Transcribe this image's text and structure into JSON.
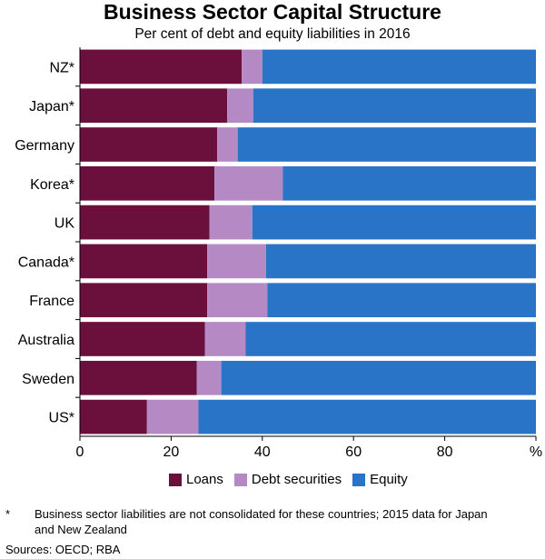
{
  "chart_data": {
    "type": "bar",
    "orientation": "horizontal",
    "stacked": true,
    "title": "Business Sector Capital Structure",
    "subtitle": "Per cent of debt and equity liabilities in 2016",
    "categories": [
      "NZ*",
      "Japan*",
      "Germany",
      "Korea*",
      "UK",
      "Canada*",
      "France",
      "Australia",
      "Sweden",
      "US*"
    ],
    "series": [
      {
        "name": "Loans",
        "color": "#6b0f3d",
        "values": [
          35.5,
          32.3,
          30.1,
          29.5,
          28.4,
          27.9,
          27.9,
          27.4,
          25.6,
          14.7
        ]
      },
      {
        "name": "Debt securities",
        "color": "#b589c4",
        "values": [
          4.5,
          5.7,
          4.5,
          15.0,
          9.4,
          12.9,
          13.2,
          8.9,
          5.4,
          11.3
        ]
      },
      {
        "name": "Equity",
        "color": "#2a74c8",
        "values": [
          60.0,
          62.0,
          65.4,
          55.5,
          62.2,
          59.2,
          58.9,
          63.7,
          69.0,
          74.0
        ]
      }
    ],
    "xlim": [
      0,
      100
    ],
    "xticks": [
      0,
      20,
      40,
      60,
      80
    ],
    "unit_label": "%",
    "legend_position": "bottom",
    "grid": false
  },
  "footnote": {
    "mark": "*",
    "text": "Business sector liabilities are not consolidated for these countries; 2015 data for Japan and New Zealand"
  },
  "sources": "Sources: OECD; RBA"
}
